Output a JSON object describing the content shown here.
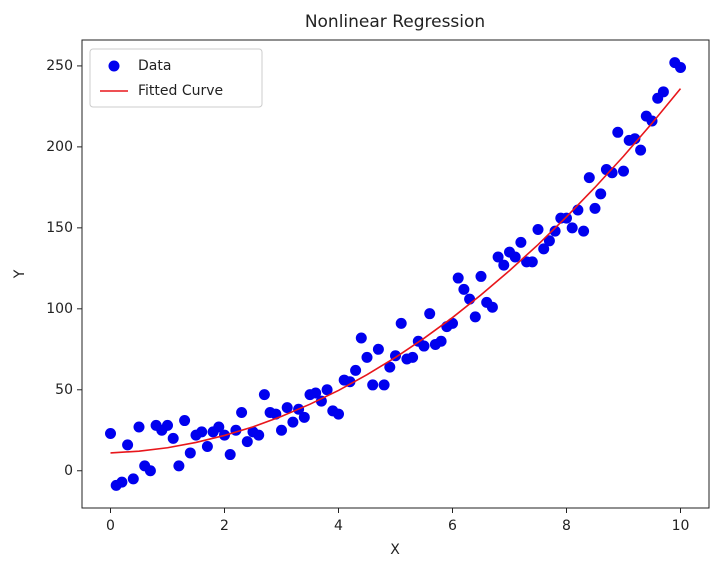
{
  "chart_data": {
    "type": "scatter",
    "title": "Nonlinear Regression",
    "x_label": "X",
    "y_label": "Y",
    "xlim": [
      -0.5,
      10.5
    ],
    "ylim": [
      -23,
      266
    ],
    "xticks": [
      0,
      2,
      4,
      6,
      8,
      10
    ],
    "yticks": [
      0,
      50,
      100,
      150,
      200,
      250
    ],
    "grid": false,
    "legend": "upper left",
    "series": [
      {
        "name": "Data",
        "mode": "markers",
        "color": "#0000ee",
        "x": [
          0,
          0.1,
          0.2,
          0.3,
          0.4,
          0.5,
          0.6,
          0.7,
          0.8,
          0.9,
          1,
          1.1,
          1.2,
          1.3,
          1.4,
          1.5,
          1.6,
          1.7,
          1.8,
          1.9,
          2,
          2.1,
          2.2,
          2.3,
          2.4,
          2.5,
          2.6,
          2.7,
          2.8,
          2.9,
          3,
          3.1,
          3.2,
          3.3,
          3.4,
          3.5,
          3.6,
          3.7,
          3.8,
          3.9,
          4,
          4.1,
          4.2,
          4.3,
          4.4,
          4.5,
          4.6,
          4.7,
          4.8,
          4.9,
          5,
          5.1,
          5.2,
          5.3,
          5.4,
          5.5,
          5.6,
          5.7,
          5.8,
          5.9,
          6,
          6.1,
          6.2,
          6.3,
          6.4,
          6.5,
          6.6,
          6.7,
          6.8,
          6.9,
          7,
          7.1,
          7.2,
          7.3,
          7.4,
          7.5,
          7.6,
          7.7,
          7.8,
          7.9,
          8,
          8.1,
          8.2,
          8.3,
          8.4,
          8.5,
          8.6,
          8.7,
          8.8,
          8.9,
          9,
          9.1,
          9.2,
          9.3,
          9.4,
          9.5,
          9.6,
          9.7,
          9.9,
          10
        ],
        "values": [
          23,
          -9,
          -7,
          16,
          -5,
          27,
          3,
          0,
          28,
          25,
          28,
          20,
          3,
          31,
          11,
          22,
          24,
          15,
          24,
          27,
          22,
          10,
          25,
          36,
          18,
          24,
          22,
          47,
          36,
          35,
          25,
          39,
          30,
          38,
          33,
          47,
          48,
          43,
          50,
          37,
          35,
          56,
          55,
          62,
          82,
          70,
          53,
          75,
          53,
          64,
          71,
          91,
          69,
          70,
          80,
          77,
          97,
          78,
          80,
          89,
          91,
          119,
          112,
          106,
          95,
          120,
          104,
          101,
          132,
          127,
          135,
          132,
          141,
          129,
          129,
          149,
          137,
          142,
          148,
          156,
          156,
          150,
          161,
          148,
          181,
          162,
          171,
          186,
          184,
          209,
          185,
          204,
          205,
          198,
          219,
          216,
          230,
          234,
          252,
          249
        ]
      },
      {
        "name": "Fitted Curve",
        "mode": "line",
        "color": "#e8161b",
        "x": [
          0,
          0.5,
          1,
          1.5,
          2,
          2.5,
          3,
          3.5,
          4,
          4.5,
          5,
          5.5,
          6,
          6.5,
          7,
          7.5,
          8,
          8.5,
          9,
          9.5,
          10
        ],
        "values": [
          11,
          12.1,
          14.2,
          17.5,
          21.8,
          27.1,
          33.6,
          41.1,
          49.6,
          59.3,
          70,
          81.8,
          94.6,
          108.6,
          123.6,
          139.6,
          156.8,
          175,
          194.2,
          214.6,
          236
        ]
      }
    ]
  }
}
